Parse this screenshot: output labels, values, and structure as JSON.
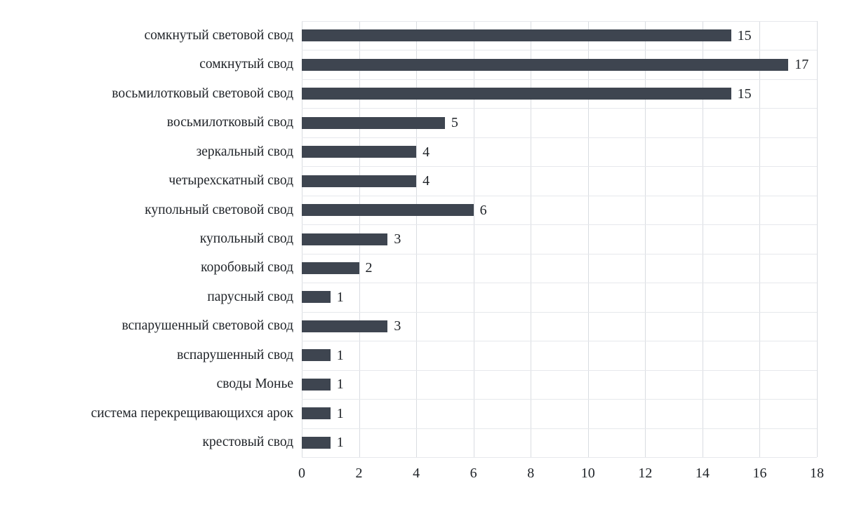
{
  "chart_data": {
    "type": "bar",
    "orientation": "horizontal",
    "title": "",
    "xlabel": "",
    "ylabel": "",
    "categories": [
      "сомкнутый световой свод",
      "сомкнутый свод",
      "восьмилотковый световой свод",
      "восьмилотковый свод",
      "зеркальный свод",
      "четырехскатный свод",
      "купольный световой свод",
      "купольный свод",
      "коробовый свод",
      "парусный свод",
      "вспарушенный световой свод",
      "вспарушенный свод",
      "своды Монье",
      "система перекрещивающихся арок",
      "крестовый свод"
    ],
    "values": [
      15,
      17,
      15,
      5,
      4,
      4,
      6,
      3,
      2,
      1,
      3,
      1,
      1,
      1,
      1
    ],
    "xlim": [
      0,
      18
    ],
    "xticks": [
      0,
      2,
      4,
      6,
      8,
      10,
      12,
      14,
      16,
      18
    ],
    "grid": true,
    "legend": "none",
    "bar_color": "#3e4550",
    "grid_color": "#d9dce1",
    "text_color": "#1f2328",
    "background_color": "#ffffff"
  }
}
